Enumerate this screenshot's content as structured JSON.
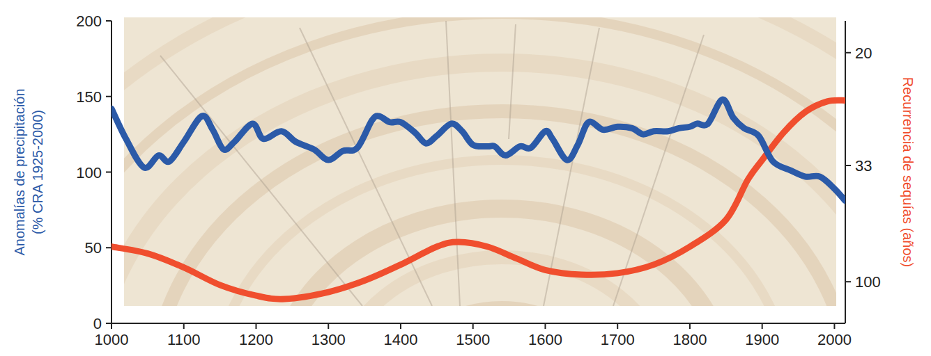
{
  "chart_data": {
    "type": "line",
    "y_label": "Anomalías de precipitación (% CRA 1925-2000)",
    "y2_label": "Recurrencia de sequías (años)",
    "xlim": [
      1000,
      2015
    ],
    "xticks": [
      1000,
      1100,
      1200,
      1300,
      1400,
      1500,
      1600,
      1700,
      1800,
      1900,
      2000
    ],
    "ylim": [
      0,
      200
    ],
    "yticks": [
      0,
      50,
      100,
      150,
      200
    ],
    "y2lim": [
      18,
      365
    ],
    "y2ticks": [
      20,
      33,
      100
    ],
    "grid": false,
    "series": [
      {
        "color": "#2b5aa8",
        "x": [
          1000,
          1020,
          1045,
          1065,
          1080,
          1100,
          1125,
          1140,
          1155,
          1170,
          1195,
          1210,
          1235,
          1255,
          1280,
          1300,
          1320,
          1340,
          1360,
          1370,
          1385,
          1400,
          1420,
          1435,
          1450,
          1470,
          1485,
          1500,
          1520,
          1530,
          1545,
          1565,
          1580,
          1600,
          1610,
          1630,
          1645,
          1660,
          1680,
          1700,
          1720,
          1735,
          1750,
          1770,
          1785,
          1800,
          1810,
          1825,
          1845,
          1860,
          1875,
          1895,
          1915,
          1940,
          1960,
          1980,
          2000,
          2015
        ],
        "values": [
          142,
          122,
          103,
          111,
          107,
          120,
          137,
          128,
          115,
          120,
          132,
          122,
          127,
          120,
          115,
          108,
          114,
          116,
          134,
          137,
          133,
          133,
          126,
          119,
          124,
          132,
          127,
          118,
          117,
          117,
          111,
          117,
          116,
          127,
          122,
          108,
          118,
          133,
          128,
          130,
          129,
          125,
          127,
          127,
          129,
          130,
          132,
          132,
          148,
          136,
          129,
          124,
          107,
          101,
          97,
          97,
          89,
          81
        ]
      },
      {
        "color": "#f04e2e",
        "axis": "y2",
        "x": [
          1000,
          1050,
          1100,
          1150,
          1200,
          1240,
          1300,
          1350,
          1400,
          1450,
          1480,
          1520,
          1560,
          1600,
          1650,
          1700,
          1750,
          1800,
          1850,
          1880,
          1900,
          1930,
          1960,
          1990,
          2015
        ],
        "values": [
          62,
          67,
          80,
          106,
          132,
          143,
          122,
          98,
          77,
          62,
          59,
          62,
          71,
          83,
          89,
          87,
          77,
          62,
          48,
          36,
          32,
          27.7,
          25.2,
          24.1,
          24
        ]
      }
    ]
  }
}
